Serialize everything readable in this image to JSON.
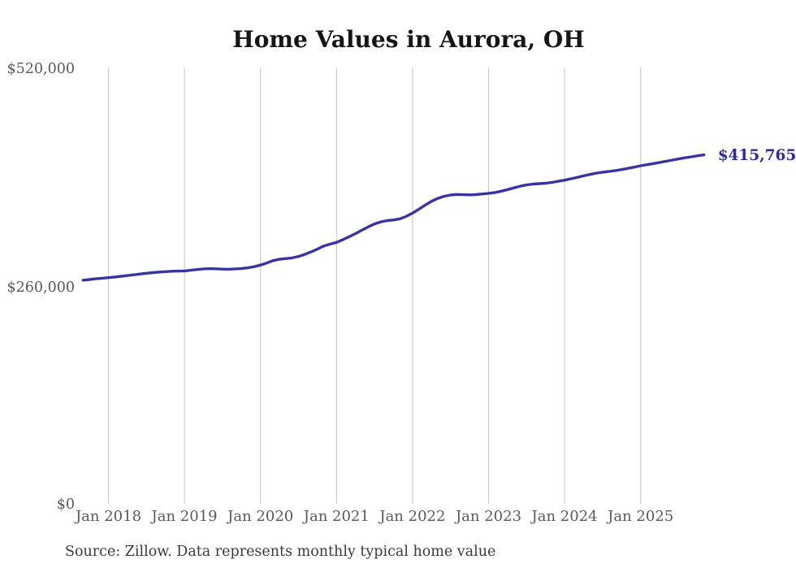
{
  "page": {
    "background": "#ffffff"
  },
  "chart_data": {
    "type": "line",
    "title": "Home Values in Aurora, OH",
    "source_note": "Source: Zillow. Data represents monthly typical home value",
    "annotation": "$415,765",
    "last_value": 415765,
    "line_color": "#3a34a1",
    "annotation_color": "#302b96",
    "grid_color": "#cccccc",
    "axis_label_color": "#595959",
    "title_color": "#161616",
    "ylim": [
      0,
      520000
    ],
    "grid": "vertical-only",
    "legend": "none",
    "y_ticks": [
      {
        "label": "$520,000",
        "value": 520000
      },
      {
        "label": "$260,000",
        "value": 260000
      },
      {
        "label": "$0",
        "value": 0
      }
    ],
    "x_ticks": [
      {
        "label": "Jan 2018",
        "month_index": 4
      },
      {
        "label": "Jan 2019",
        "month_index": 16
      },
      {
        "label": "Jan 2020",
        "month_index": 28
      },
      {
        "label": "Jan 2021",
        "month_index": 40
      },
      {
        "label": "Jan 2022",
        "month_index": 52
      },
      {
        "label": "Jan 2023",
        "month_index": 64
      },
      {
        "label": "Jan 2024",
        "month_index": 76
      },
      {
        "label": "Jan 2025",
        "month_index": 88
      }
    ],
    "months": [
      "Sep 2017",
      "Oct 2017",
      "Nov 2017",
      "Dec 2017",
      "Jan 2018",
      "Feb 2018",
      "Mar 2018",
      "Apr 2018",
      "May 2018",
      "Jun 2018",
      "Jul 2018",
      "Aug 2018",
      "Sep 2018",
      "Oct 2018",
      "Nov 2018",
      "Dec 2018",
      "Jan 2019",
      "Feb 2019",
      "Mar 2019",
      "Apr 2019",
      "May 2019",
      "Jun 2019",
      "Jul 2019",
      "Aug 2019",
      "Sep 2019",
      "Oct 2019",
      "Nov 2019",
      "Dec 2019",
      "Jan 2020",
      "Feb 2020",
      "Mar 2020",
      "Apr 2020",
      "May 2020",
      "Jun 2020",
      "Jul 2020",
      "Aug 2020",
      "Sep 2020",
      "Oct 2020",
      "Nov 2020",
      "Dec 2020",
      "Jan 2021",
      "Feb 2021",
      "Mar 2021",
      "Apr 2021",
      "May 2021",
      "Jun 2021",
      "Jul 2021",
      "Aug 2021",
      "Sep 2021",
      "Oct 2021",
      "Nov 2021",
      "Dec 2021",
      "Jan 2022",
      "Feb 2022",
      "Mar 2022",
      "Apr 2022",
      "May 2022",
      "Jun 2022",
      "Jul 2022",
      "Aug 2022",
      "Sep 2022",
      "Oct 2022",
      "Nov 2022",
      "Dec 2022",
      "Jan 2023",
      "Feb 2023",
      "Mar 2023",
      "Apr 2023",
      "May 2023",
      "Jun 2023",
      "Jul 2023",
      "Aug 2023",
      "Sep 2023",
      "Oct 2023",
      "Nov 2023",
      "Dec 2023",
      "Jan 2024",
      "Feb 2024",
      "Mar 2024",
      "Apr 2024",
      "May 2024",
      "Jun 2024",
      "Jul 2024",
      "Aug 2024",
      "Sep 2024",
      "Oct 2024",
      "Nov 2024",
      "Dec 2024",
      "Jan 2025",
      "Feb 2025",
      "Mar 2025",
      "Apr 2025",
      "May 2025",
      "Jun 2025",
      "Jul 2025",
      "Aug 2025",
      "Sep 2025",
      "Oct 2025",
      "Nov 2025"
    ],
    "values": [
      266500,
      267300,
      268100,
      268800,
      269500,
      270300,
      271100,
      272000,
      272900,
      273800,
      274700,
      275500,
      276200,
      276700,
      277100,
      277300,
      277500,
      278300,
      279200,
      279900,
      280200,
      280000,
      279700,
      279600,
      279900,
      280400,
      281200,
      282600,
      284500,
      287000,
      289800,
      291500,
      292200,
      293000,
      294800,
      297300,
      300300,
      303600,
      307300,
      309500,
      311500,
      314800,
      318300,
      322000,
      326000,
      330000,
      333500,
      336000,
      337500,
      338200,
      339600,
      342500,
      346500,
      351000,
      356000,
      360500,
      364000,
      366500,
      368000,
      368600,
      368400,
      368200,
      368500,
      369200,
      370000,
      371000,
      372500,
      374500,
      376500,
      378500,
      380000,
      381000,
      381500,
      382000,
      383000,
      384300,
      385700,
      387300,
      389000,
      390800,
      392500,
      394000,
      395200,
      396100,
      397100,
      398300,
      399700,
      401200,
      402800,
      404100,
      405400,
      406800,
      408200,
      409600,
      411000,
      412300,
      413500,
      414700,
      415765
    ]
  }
}
